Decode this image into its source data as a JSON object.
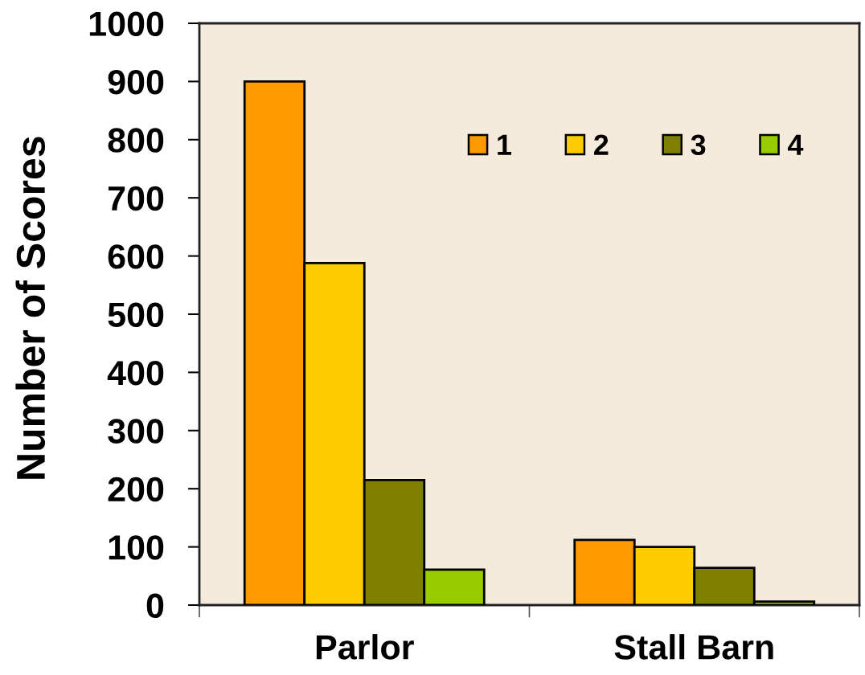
{
  "chart_data": {
    "type": "bar",
    "ylabel": "Number of Scores",
    "categories": [
      "Parlor",
      "Stall Barn"
    ],
    "series": [
      {
        "name": "1",
        "color": "#ff9900",
        "values": [
          900,
          112
        ]
      },
      {
        "name": "2",
        "color": "#ffcc00",
        "values": [
          588,
          100
        ]
      },
      {
        "name": "3",
        "color": "#808000",
        "values": [
          215,
          64
        ]
      },
      {
        "name": "4",
        "color": "#99cc00",
        "values": [
          61,
          6
        ]
      }
    ],
    "ylim": [
      0,
      1000
    ],
    "yticks": [
      0,
      100,
      200,
      300,
      400,
      500,
      600,
      700,
      800,
      900,
      1000
    ],
    "grid": false,
    "legend": "top right"
  }
}
